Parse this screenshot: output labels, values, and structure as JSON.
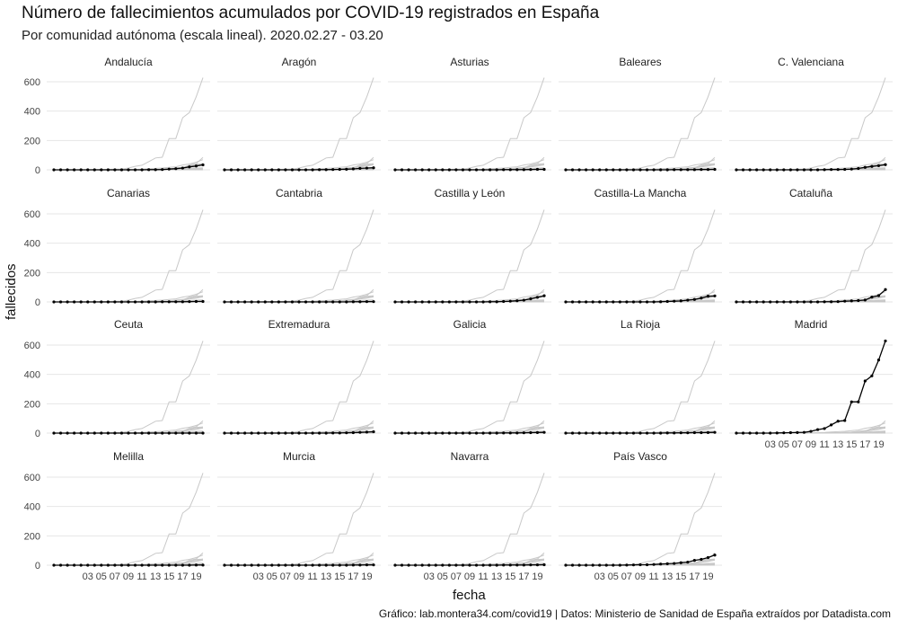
{
  "title": "Número de fallecimientos acumulados por COVID-19 registrados en España",
  "subtitle": "Por comunidad autónoma (escala lineal). 2020.02.27 - 03.20",
  "caption": "Gráfico: lab.montera34.com/covid19 | Datos: Ministerio de Sanidad de España extraídos por Datadista.com",
  "colors": {
    "highlight": "#000000",
    "background_series": "#c8c8c8",
    "grid": "#e6e6e6"
  },
  "chart_data": {
    "type": "line",
    "facet_layout": "wrap, 5 columns",
    "x": [
      "2020-02-27",
      "2020-02-28",
      "2020-02-29",
      "2020-03-01",
      "2020-03-02",
      "2020-03-03",
      "2020-03-04",
      "2020-03-05",
      "2020-03-06",
      "2020-03-07",
      "2020-03-08",
      "2020-03-09",
      "2020-03-10",
      "2020-03-11",
      "2020-03-12",
      "2020-03-13",
      "2020-03-14",
      "2020-03-15",
      "2020-03-16",
      "2020-03-17",
      "2020-03-18",
      "2020-03-19",
      "2020-03-20"
    ],
    "x_tick_labels": [
      "03",
      "05",
      "07",
      "09",
      "11",
      "13",
      "15",
      "17",
      "19"
    ],
    "x_tick_dates": [
      "2020-03-03",
      "2020-03-05",
      "2020-03-07",
      "2020-03-09",
      "2020-03-11",
      "2020-03-13",
      "2020-03-15",
      "2020-03-17",
      "2020-03-19"
    ],
    "xlabel": "fecha",
    "ylabel": "fallecidos",
    "ylim": [
      0,
      650
    ],
    "y_ticks": [
      0,
      200,
      400,
      600
    ],
    "grid": true,
    "series": [
      {
        "name": "Andalucía",
        "values": [
          0,
          0,
          0,
          0,
          0,
          0,
          0,
          0,
          0,
          0,
          0,
          0,
          0,
          0,
          1,
          1,
          2,
          5,
          8,
          12,
          20,
          26,
          34
        ]
      },
      {
        "name": "Aragón",
        "values": [
          0,
          0,
          0,
          0,
          0,
          0,
          0,
          0,
          0,
          0,
          0,
          0,
          0,
          0,
          1,
          1,
          2,
          3,
          4,
          6,
          10,
          12,
          14
        ]
      },
      {
        "name": "Asturias",
        "values": [
          0,
          0,
          0,
          0,
          0,
          0,
          0,
          0,
          0,
          0,
          0,
          0,
          0,
          0,
          0,
          0,
          1,
          1,
          1,
          1,
          2,
          3,
          3
        ]
      },
      {
        "name": "Baleares",
        "values": [
          0,
          0,
          0,
          0,
          0,
          0,
          0,
          0,
          0,
          0,
          0,
          0,
          0,
          0,
          0,
          0,
          1,
          1,
          1,
          1,
          2,
          2,
          3
        ]
      },
      {
        "name": "C. Valenciana",
        "values": [
          0,
          0,
          0,
          0,
          0,
          0,
          0,
          0,
          0,
          0,
          0,
          0,
          0,
          1,
          2,
          2,
          3,
          5,
          9,
          17,
          23,
          28,
          35
        ]
      },
      {
        "name": "Canarias",
        "values": [
          0,
          0,
          0,
          0,
          0,
          0,
          0,
          0,
          0,
          0,
          0,
          0,
          0,
          0,
          0,
          0,
          1,
          1,
          1,
          1,
          2,
          3,
          3
        ]
      },
      {
        "name": "Cantabria",
        "values": [
          0,
          0,
          0,
          0,
          0,
          0,
          0,
          0,
          0,
          0,
          0,
          0,
          0,
          0,
          0,
          0,
          0,
          0,
          0,
          1,
          1,
          2,
          2
        ]
      },
      {
        "name": "Castilla y León",
        "values": [
          0,
          0,
          0,
          0,
          0,
          0,
          0,
          0,
          0,
          0,
          0,
          0,
          0,
          0,
          1,
          1,
          3,
          5,
          8,
          12,
          21,
          31,
          42
        ]
      },
      {
        "name": "Castilla-La Mancha",
        "values": [
          0,
          0,
          0,
          0,
          0,
          0,
          0,
          0,
          0,
          0,
          0,
          0,
          0,
          0,
          1,
          3,
          5,
          7,
          12,
          17,
          26,
          39,
          41
        ]
      },
      {
        "name": "Cataluña",
        "values": [
          0,
          0,
          0,
          0,
          0,
          0,
          0,
          0,
          0,
          0,
          0,
          0,
          0,
          1,
          1,
          2,
          5,
          7,
          9,
          13,
          33,
          43,
          84
        ]
      },
      {
        "name": "Ceuta",
        "values": [
          0,
          0,
          0,
          0,
          0,
          0,
          0,
          0,
          0,
          0,
          0,
          0,
          0,
          0,
          0,
          0,
          0,
          0,
          0,
          0,
          0,
          0,
          0
        ]
      },
      {
        "name": "Extremadura",
        "values": [
          0,
          0,
          0,
          0,
          0,
          0,
          0,
          0,
          0,
          0,
          0,
          0,
          0,
          0,
          0,
          0,
          1,
          1,
          2,
          3,
          5,
          7,
          9
        ]
      },
      {
        "name": "Galicia",
        "values": [
          0,
          0,
          0,
          0,
          0,
          0,
          0,
          0,
          0,
          0,
          0,
          0,
          0,
          0,
          0,
          0,
          1,
          1,
          1,
          2,
          3,
          4,
          5
        ]
      },
      {
        "name": "La Rioja",
        "values": [
          0,
          0,
          0,
          0,
          0,
          0,
          0,
          0,
          0,
          0,
          0,
          0,
          0,
          0,
          0,
          1,
          1,
          2,
          2,
          3,
          3,
          4,
          5
        ]
      },
      {
        "name": "Madrid",
        "values": [
          0,
          0,
          0,
          0,
          0,
          0,
          1,
          2,
          3,
          4,
          5,
          12,
          24,
          31,
          56,
          81,
          86,
          213,
          213,
          355,
          390,
          498,
          628
        ]
      },
      {
        "name": "Melilla",
        "values": [
          0,
          0,
          0,
          0,
          0,
          0,
          0,
          0,
          0,
          0,
          0,
          0,
          0,
          0,
          0,
          0,
          0,
          0,
          0,
          0,
          0,
          1,
          1
        ]
      },
      {
        "name": "Murcia",
        "values": [
          0,
          0,
          0,
          0,
          0,
          0,
          0,
          0,
          0,
          0,
          0,
          0,
          0,
          0,
          0,
          0,
          0,
          0,
          0,
          1,
          1,
          2,
          2
        ]
      },
      {
        "name": "Navarra",
        "values": [
          0,
          0,
          0,
          0,
          0,
          0,
          0,
          0,
          0,
          0,
          0,
          0,
          0,
          0,
          0,
          0,
          1,
          1,
          1,
          1,
          2,
          2,
          3
        ]
      },
      {
        "name": "País Vasco",
        "values": [
          0,
          0,
          0,
          0,
          0,
          0,
          0,
          0,
          0,
          1,
          2,
          3,
          3,
          5,
          8,
          10,
          12,
          17,
          21,
          33,
          40,
          52,
          69
        ]
      }
    ]
  }
}
